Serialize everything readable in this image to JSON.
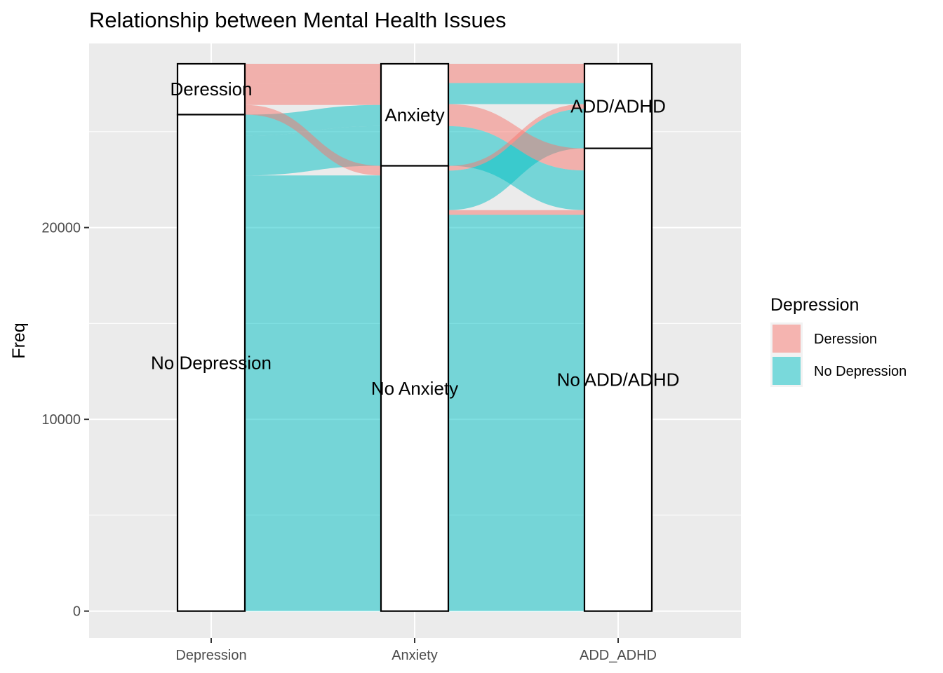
{
  "chart_data": {
    "type": "alluvial",
    "title": "Relationship between Mental Health Issues",
    "xlabel": "",
    "ylabel": "Freq",
    "ylim": [
      -1400,
      29600
    ],
    "y_ticks": [
      0,
      10000,
      20000
    ],
    "axes": [
      "Depression",
      "Anxiety",
      "ADD_ADHD"
    ],
    "grid": true,
    "fill_by": "Depression",
    "colors": {
      "Deression": "#F8766D",
      "No Depression": "#00BFC4"
    },
    "legend": {
      "title": "Depression",
      "position": "right",
      "entries": [
        "Deression",
        "No Depression"
      ]
    },
    "strata": {
      "Depression": [
        {
          "label": "Deression",
          "value": 2650
        },
        {
          "label": "No Depression",
          "value": 25890
        }
      ],
      "Anxiety": [
        {
          "label": "Anxiety",
          "value": 5320
        },
        {
          "label": "No Anxiety",
          "value": 23220
        }
      ],
      "ADD_ADHD": [
        {
          "label": "ADD/ADHD",
          "value": 4410
        },
        {
          "label": "No ADD/ADHD",
          "value": 24130
        }
      ]
    },
    "flows": [
      {
        "Depression": "Deression",
        "Anxiety": "Anxiety",
        "ADD_ADHD": "ADD/ADHD",
        "value": 1000
      },
      {
        "Depression": "Deression",
        "Anxiety": "Anxiety",
        "ADD_ADHD": "No ADD/ADHD",
        "value": 1150
      },
      {
        "Depression": "Deression",
        "Anxiety": "No Anxiety",
        "ADD_ADHD": "ADD/ADHD",
        "value": 250
      },
      {
        "Depression": "Deression",
        "Anxiety": "No Anxiety",
        "ADD_ADHD": "No ADD/ADHD",
        "value": 250
      },
      {
        "Depression": "No Depression",
        "Anxiety": "Anxiety",
        "ADD_ADHD": "ADD/ADHD",
        "value": 1100
      },
      {
        "Depression": "No Depression",
        "Anxiety": "Anxiety",
        "ADD_ADHD": "No ADD/ADHD",
        "value": 2070
      },
      {
        "Depression": "No Depression",
        "Anxiety": "No Anxiety",
        "ADD_ADHD": "ADD/ADHD",
        "value": 2060
      },
      {
        "Depression": "No Depression",
        "Anxiety": "No Anxiety",
        "ADD_ADHD": "No ADD/ADHD",
        "value": 20660
      }
    ]
  }
}
